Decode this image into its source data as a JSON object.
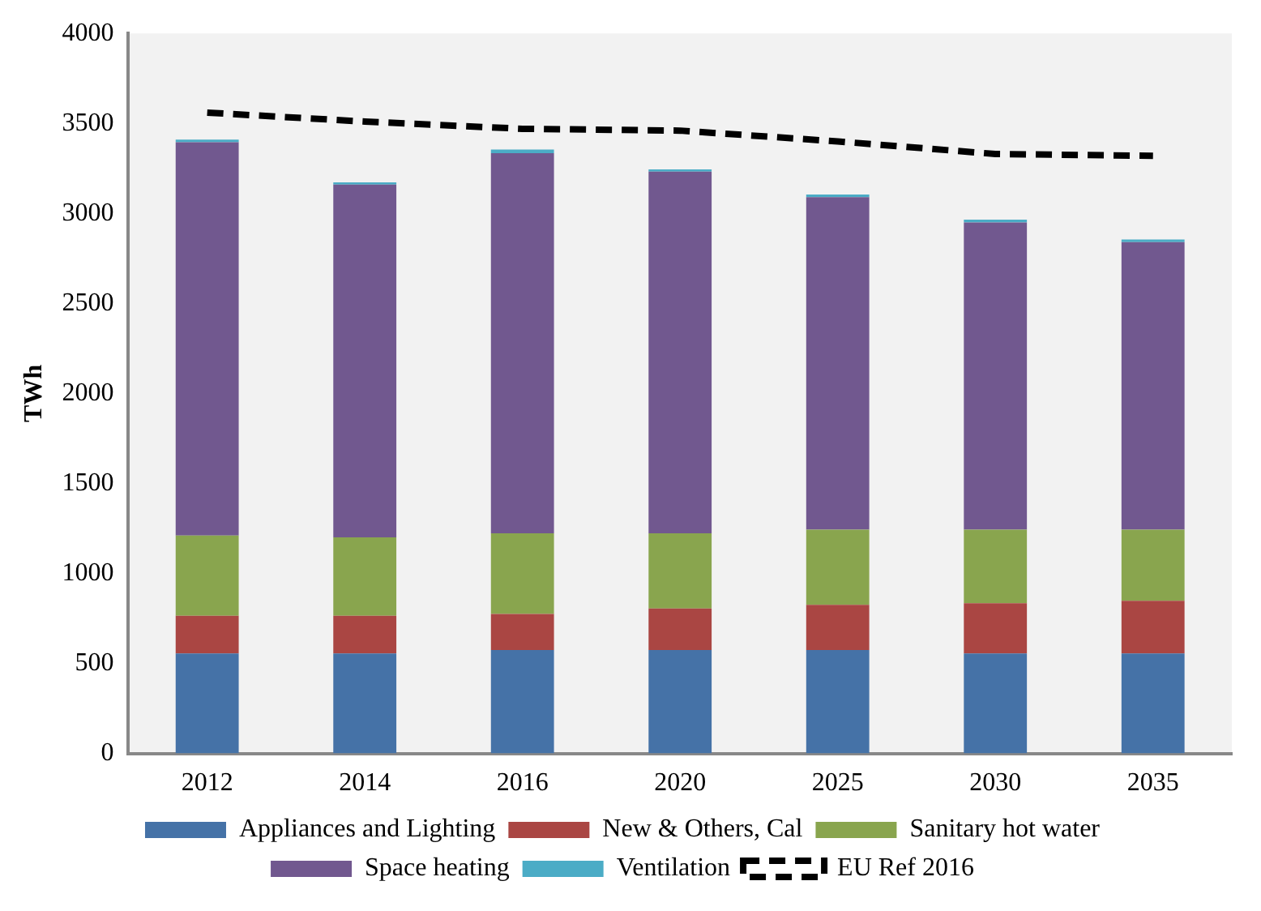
{
  "chart_data": {
    "type": "bar",
    "stacked": true,
    "ylabel": "TWh",
    "categories": [
      "2012",
      "2014",
      "2016",
      "2020",
      "2025",
      "2030",
      "2035"
    ],
    "series": [
      {
        "name": "Appliances and Lighting",
        "color": "#4572a7",
        "values": [
          555,
          555,
          575,
          575,
          575,
          555,
          555
        ]
      },
      {
        "name": "New & Others, Cal",
        "color": "#aa4643",
        "values": [
          210,
          210,
          200,
          230,
          250,
          280,
          293
        ]
      },
      {
        "name": "Sanitary hot water",
        "color": "#89a54e",
        "values": [
          445,
          435,
          448,
          418,
          418,
          408,
          395
        ]
      },
      {
        "name": "Space heating",
        "color": "#71588f",
        "values": [
          2185,
          1960,
          2112,
          2009,
          1847,
          1707,
          1597
        ]
      },
      {
        "name": "Ventilation",
        "color": "#4bacc6",
        "values": [
          15,
          13,
          20,
          13,
          15,
          15,
          15
        ]
      },
      {
        "name": "EU Ref 2016",
        "type": "line",
        "line_style": "dashed",
        "marker": "none",
        "color": "#000000",
        "values": [
          3560,
          3510,
          3470,
          3460,
          3400,
          3330,
          3320
        ]
      }
    ],
    "ylim": [
      0,
      4000
    ],
    "yticks": [
      0,
      500,
      1000,
      1500,
      2000,
      2500,
      3000,
      3500,
      4000
    ],
    "grid": false,
    "legend": "bottom"
  }
}
